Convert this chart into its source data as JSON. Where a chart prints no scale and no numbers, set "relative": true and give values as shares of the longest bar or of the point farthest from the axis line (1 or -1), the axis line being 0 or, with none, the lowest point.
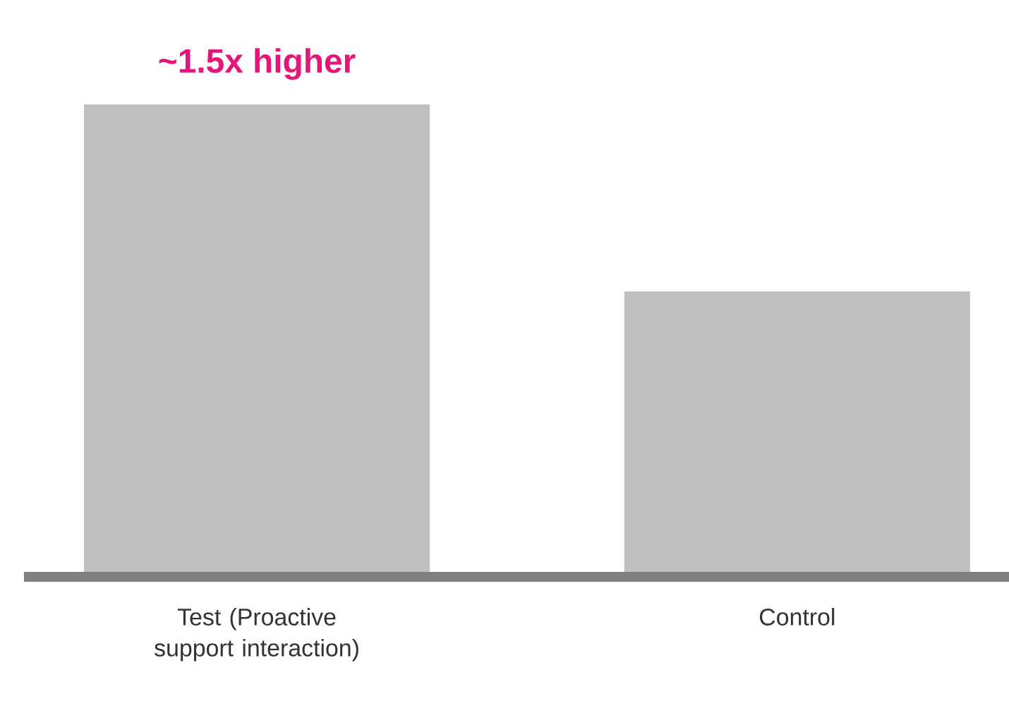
{
  "chart_data": {
    "type": "bar",
    "relative": true,
    "categories": [
      "Test (Proactive support interaction)",
      "Control"
    ],
    "values": [
      1,
      0.6
    ],
    "color": "#bfbfbf",
    "annotations": [
      {
        "text": "~1.5x higher",
        "x": "Test (Proactive support interaction)",
        "y": 1
      }
    ]
  }
}
